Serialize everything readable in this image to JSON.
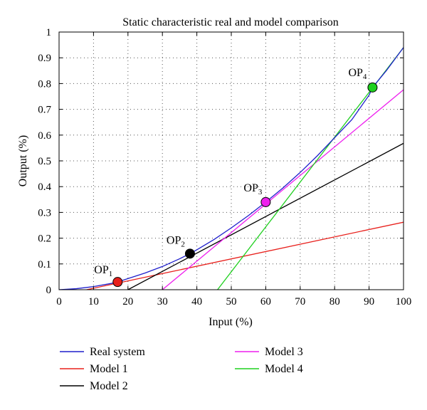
{
  "chart_data": {
    "type": "line",
    "title": "Static characteristic real and model comparison",
    "xlabel": "Input (%)",
    "ylabel": "Output (%)",
    "xlim": [
      0,
      100
    ],
    "ylim": [
      0,
      1
    ],
    "x_ticks": [
      "0",
      "10",
      "20",
      "30",
      "40",
      "50",
      "60",
      "70",
      "80",
      "90",
      "100"
    ],
    "y_ticks": [
      "0",
      "0.1",
      "0.2",
      "0.3",
      "0.4",
      "0.5",
      "0.6",
      "0.7",
      "0.8",
      "0.9",
      "1"
    ],
    "grid": true,
    "grid_style": "dotted",
    "series": [
      {
        "name": "Real system",
        "color": "#1f1fcc",
        "x": [
          0,
          5,
          10,
          15,
          17,
          20,
          25,
          30,
          35,
          38,
          40,
          45,
          50,
          55,
          60,
          65,
          70,
          75,
          80,
          85,
          90,
          91,
          95,
          100
        ],
        "y": [
          0,
          0.004,
          0.012,
          0.024,
          0.03,
          0.043,
          0.065,
          0.09,
          0.12,
          0.14,
          0.155,
          0.195,
          0.24,
          0.288,
          0.34,
          0.395,
          0.455,
          0.52,
          0.59,
          0.66,
          0.755,
          0.785,
          0.85,
          0.94
        ]
      },
      {
        "name": "Model 1",
        "color": "#e8201c",
        "x": [
          8,
          100
        ],
        "y": [
          0,
          0.262
        ]
      },
      {
        "name": "Model 2",
        "color": "#000000",
        "x": [
          20,
          100
        ],
        "y": [
          0,
          0.568
        ]
      },
      {
        "name": "Model 3",
        "color": "#ee1fee",
        "x": [
          30,
          100
        ],
        "y": [
          0,
          0.776
        ]
      },
      {
        "name": "Model 4",
        "color": "#1fd01f",
        "x": [
          46,
          100
        ],
        "y": [
          0,
          0.94
        ]
      }
    ],
    "operating_points": [
      {
        "label": "OP",
        "sub": "1",
        "x": 17,
        "y": 0.03,
        "color": "#e8201c"
      },
      {
        "label": "OP",
        "sub": "2",
        "x": 38,
        "y": 0.14,
        "color": "#000000"
      },
      {
        "label": "OP",
        "sub": "3",
        "x": 60,
        "y": 0.34,
        "color": "#ee1fee"
      },
      {
        "label": "OP",
        "sub": "4",
        "x": 91,
        "y": 0.785,
        "color": "#1fd01f"
      }
    ],
    "legend": {
      "placement": "bottom",
      "entries": [
        {
          "label": "Real system",
          "color": "#1f1fcc"
        },
        {
          "label": "Model 1",
          "color": "#e8201c"
        },
        {
          "label": "Model 2",
          "color": "#000000"
        },
        {
          "label": "Model 3",
          "color": "#ee1fee"
        },
        {
          "label": "Model 4",
          "color": "#1fd01f"
        }
      ]
    }
  }
}
